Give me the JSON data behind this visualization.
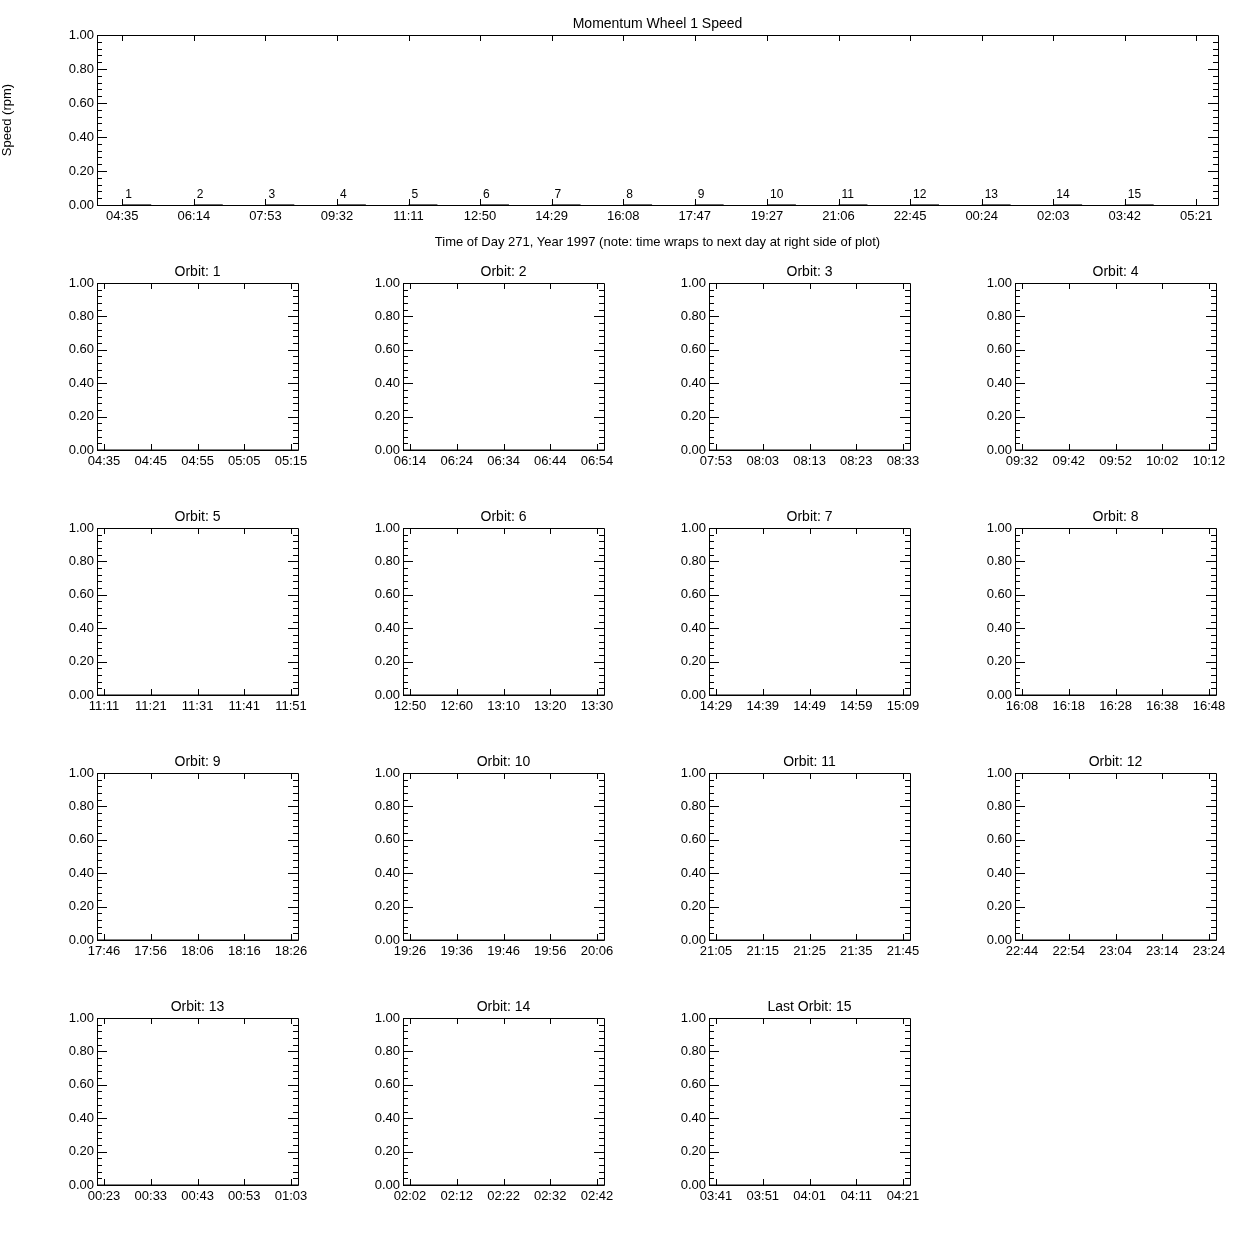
{
  "chart_data": [
    {
      "type": "line",
      "title": "Momentum Wheel 1 Speed",
      "xlabel": "Time of Day 271, Year 1997 (note: time wraps to next day at right side of plot)",
      "ylabel": "Speed (rpm)",
      "xlim": [
        "1997-09-28T04:00",
        "1997-09-29T05:51"
      ],
      "xticks": [
        {
          "value": "1997-09-28T04:35",
          "label": "04:35"
        },
        {
          "value": "1997-09-28T06:14",
          "label": "06:14"
        },
        {
          "value": "1997-09-28T07:53",
          "label": "07:53"
        },
        {
          "value": "1997-09-28T09:32",
          "label": "09:32"
        },
        {
          "value": "1997-09-28T11:11",
          "label": "11:11"
        },
        {
          "value": "1997-09-28T12:50",
          "label": "12:50"
        },
        {
          "value": "1997-09-28T14:29",
          "label": "14:29"
        },
        {
          "value": "1997-09-28T16:08",
          "label": "16:08"
        },
        {
          "value": "1997-09-28T17:47",
          "label": "17:47"
        },
        {
          "value": "1997-09-28T19:27",
          "label": "19:27"
        },
        {
          "value": "1997-09-28T21:06",
          "label": "21:06"
        },
        {
          "value": "1997-09-28T22:45",
          "label": "22:45"
        },
        {
          "value": "1997-09-29T00:24",
          "label": "00:24"
        },
        {
          "value": "1997-09-29T02:03",
          "label": "02:03"
        },
        {
          "value": "1997-09-29T03:42",
          "label": "03:42"
        },
        {
          "value": "1997-09-29T05:21",
          "label": "05:21"
        }
      ],
      "ylim": [
        0,
        1
      ],
      "yticks": [
        {
          "value": 0,
          "label": "0.00"
        },
        {
          "value": 0.2,
          "label": "0.20"
        },
        {
          "value": 0.4,
          "label": "0.40"
        },
        {
          "value": 0.6,
          "label": "0.60"
        },
        {
          "value": 0.8,
          "label": "0.80"
        },
        {
          "value": 1,
          "label": "1.00"
        }
      ],
      "series": [
        {
          "color": "#000000",
          "x": [
            "1997-09-28T04:35",
            "1997-09-28T05:15"
          ],
          "values": [
            0,
            0
          ]
        },
        {
          "color": "#000000",
          "x": [
            "1997-09-28T06:14",
            "1997-09-28T06:54"
          ],
          "values": [
            0,
            0
          ]
        },
        {
          "color": "#000000",
          "x": [
            "1997-09-28T07:53",
            "1997-09-28T08:33"
          ],
          "values": [
            0,
            0
          ]
        },
        {
          "color": "#000000",
          "x": [
            "1997-09-28T09:32",
            "1997-09-28T10:12"
          ],
          "values": [
            0,
            0
          ]
        },
        {
          "color": "#000000",
          "x": [
            "1997-09-28T11:11",
            "1997-09-28T11:51"
          ],
          "values": [
            0,
            0
          ]
        },
        {
          "color": "#000000",
          "x": [
            "1997-09-28T12:50",
            "1997-09-28T13:30"
          ],
          "values": [
            0,
            0
          ]
        },
        {
          "color": "#000000",
          "x": [
            "1997-09-28T14:29",
            "1997-09-28T15:09"
          ],
          "values": [
            0,
            0
          ]
        },
        {
          "color": "#000000",
          "x": [
            "1997-09-28T16:08",
            "1997-09-28T16:48"
          ],
          "values": [
            0,
            0
          ]
        },
        {
          "color": "#000000",
          "x": [
            "1997-09-28T17:47",
            "1997-09-28T18:27"
          ],
          "values": [
            0,
            0
          ]
        },
        {
          "color": "#000000",
          "x": [
            "1997-09-28T19:27",
            "1997-09-28T20:07"
          ],
          "values": [
            0,
            0
          ]
        },
        {
          "color": "#000000",
          "x": [
            "1997-09-28T21:06",
            "1997-09-28T21:46"
          ],
          "values": [
            0,
            0
          ]
        },
        {
          "color": "#000000",
          "x": [
            "1997-09-28T22:45",
            "1997-09-28T23:25"
          ],
          "values": [
            0,
            0
          ]
        },
        {
          "color": "#000000",
          "x": [
            "1997-09-29T00:24",
            "1997-09-29T01:04"
          ],
          "values": [
            0,
            0
          ]
        },
        {
          "color": "#000000",
          "x": [
            "1997-09-29T02:03",
            "1997-09-29T02:43"
          ],
          "values": [
            0,
            0
          ]
        },
        {
          "color": "#000000",
          "x": [
            "1997-09-29T03:42",
            "1997-09-29T04:22"
          ],
          "values": [
            0,
            0
          ]
        }
      ],
      "annotations": [
        {
          "text": "1",
          "x": "1997-09-28T04:35",
          "y": 0
        },
        {
          "text": "2",
          "x": "1997-09-28T06:14",
          "y": 0
        },
        {
          "text": "3",
          "x": "1997-09-28T07:53",
          "y": 0
        },
        {
          "text": "4",
          "x": "1997-09-28T09:32",
          "y": 0
        },
        {
          "text": "5",
          "x": "1997-09-28T11:11",
          "y": 0
        },
        {
          "text": "6",
          "x": "1997-09-28T12:50",
          "y": 0
        },
        {
          "text": "7",
          "x": "1997-09-28T14:29",
          "y": 0
        },
        {
          "text": "8",
          "x": "1997-09-28T16:08",
          "y": 0
        },
        {
          "text": "9",
          "x": "1997-09-28T17:47",
          "y": 0
        },
        {
          "text": "10",
          "x": "1997-09-28T19:27",
          "y": 0
        },
        {
          "text": "11",
          "x": "1997-09-28T21:06",
          "y": 0
        },
        {
          "text": "12",
          "x": "1997-09-28T22:45",
          "y": 0
        },
        {
          "text": "13",
          "x": "1997-09-29T00:24",
          "y": 0
        },
        {
          "text": "14",
          "x": "1997-09-29T02:03",
          "y": 0
        },
        {
          "text": "15",
          "x": "1997-09-29T03:42",
          "y": 0
        }
      ]
    },
    {
      "type": "line",
      "title": "Orbit: 1",
      "xlim": [
        4.558,
        5.275
      ],
      "xticks": [
        {
          "value": 4.583,
          "label": "04:35"
        },
        {
          "value": 4.75,
          "label": "04:45"
        },
        {
          "value": 4.917,
          "label": "04:55"
        },
        {
          "value": 5.083,
          "label": "05:05"
        },
        {
          "value": 5.25,
          "label": "05:15"
        }
      ],
      "ylim": [
        0,
        1
      ],
      "yticks": [
        {
          "value": 0,
          "label": "0.00"
        },
        {
          "value": 0.2,
          "label": "0.20"
        },
        {
          "value": 0.4,
          "label": "0.40"
        },
        {
          "value": 0.6,
          "label": "0.60"
        },
        {
          "value": 0.8,
          "label": "0.80"
        },
        {
          "value": 1,
          "label": "1.00"
        }
      ],
      "series": [
        {
          "color": "#000000",
          "x": [
            4.558,
            5.275
          ],
          "values": [
            0,
            0
          ]
        }
      ]
    },
    {
      "type": "line",
      "title": "Orbit: 2",
      "xlim": [
        6.208,
        6.925
      ],
      "xticks": [
        {
          "value": 6.233,
          "label": "06:14"
        },
        {
          "value": 6.4,
          "label": "06:24"
        },
        {
          "value": 6.567,
          "label": "06:34"
        },
        {
          "value": 6.733,
          "label": "06:44"
        },
        {
          "value": 6.9,
          "label": "06:54"
        }
      ],
      "ylim": [
        0,
        1
      ],
      "yticks": [
        {
          "value": 0,
          "label": "0.00"
        },
        {
          "value": 0.2,
          "label": "0.20"
        },
        {
          "value": 0.4,
          "label": "0.40"
        },
        {
          "value": 0.6,
          "label": "0.60"
        },
        {
          "value": 0.8,
          "label": "0.80"
        },
        {
          "value": 1,
          "label": "1.00"
        }
      ],
      "series": [
        {
          "color": "#000000",
          "x": [
            6.208,
            6.925
          ],
          "values": [
            0,
            0
          ]
        }
      ]
    },
    {
      "type": "line",
      "title": "Orbit: 3",
      "xlim": [
        7.858,
        8.575
      ],
      "xticks": [
        {
          "value": 7.883,
          "label": "07:53"
        },
        {
          "value": 8.05,
          "label": "08:03"
        },
        {
          "value": 8.217,
          "label": "08:13"
        },
        {
          "value": 8.383,
          "label": "08:23"
        },
        {
          "value": 8.55,
          "label": "08:33"
        }
      ],
      "ylim": [
        0,
        1
      ],
      "yticks": [
        {
          "value": 0,
          "label": "0.00"
        },
        {
          "value": 0.2,
          "label": "0.20"
        },
        {
          "value": 0.4,
          "label": "0.40"
        },
        {
          "value": 0.6,
          "label": "0.60"
        },
        {
          "value": 0.8,
          "label": "0.80"
        },
        {
          "value": 1,
          "label": "1.00"
        }
      ],
      "series": [
        {
          "color": "#000000",
          "x": [
            7.858,
            8.575
          ],
          "values": [
            0,
            0
          ]
        }
      ]
    },
    {
      "type": "line",
      "title": "Orbit: 4",
      "xlim": [
        9.508,
        10.225
      ],
      "xticks": [
        {
          "value": 9.533,
          "label": "09:32"
        },
        {
          "value": 9.7,
          "label": "09:42"
        },
        {
          "value": 9.867,
          "label": "09:52"
        },
        {
          "value": 10.033,
          "label": "10:02"
        },
        {
          "value": 10.2,
          "label": "10:12"
        }
      ],
      "ylim": [
        0,
        1
      ],
      "yticks": [
        {
          "value": 0,
          "label": "0.00"
        },
        {
          "value": 0.2,
          "label": "0.20"
        },
        {
          "value": 0.4,
          "label": "0.40"
        },
        {
          "value": 0.6,
          "label": "0.60"
        },
        {
          "value": 0.8,
          "label": "0.80"
        },
        {
          "value": 1,
          "label": "1.00"
        }
      ],
      "series": [
        {
          "color": "#000000",
          "x": [
            9.508,
            10.225
          ],
          "values": [
            0,
            0
          ]
        }
      ]
    },
    {
      "type": "line",
      "title": "Orbit: 5",
      "xlim": [
        11.158,
        11.875
      ],
      "xticks": [
        {
          "value": 11.183,
          "label": "11:11"
        },
        {
          "value": 11.35,
          "label": "11:21"
        },
        {
          "value": 11.517,
          "label": "11:31"
        },
        {
          "value": 11.683,
          "label": "11:41"
        },
        {
          "value": 11.85,
          "label": "11:51"
        }
      ],
      "ylim": [
        0,
        1
      ],
      "yticks": [
        {
          "value": 0,
          "label": "0.00"
        },
        {
          "value": 0.2,
          "label": "0.20"
        },
        {
          "value": 0.4,
          "label": "0.40"
        },
        {
          "value": 0.6,
          "label": "0.60"
        },
        {
          "value": 0.8,
          "label": "0.80"
        },
        {
          "value": 1,
          "label": "1.00"
        }
      ],
      "series": [
        {
          "color": "#000000",
          "x": [
            11.158,
            11.875
          ],
          "values": [
            0,
            0
          ]
        }
      ]
    },
    {
      "type": "line",
      "title": "Orbit: 6",
      "xlim": [
        12.808,
        13.525
      ],
      "xticks": [
        {
          "value": 12.833,
          "label": "12:50"
        },
        {
          "value": 13,
          "label": "12:60"
        },
        {
          "value": 13.167,
          "label": "13:10"
        },
        {
          "value": 13.333,
          "label": "13:20"
        },
        {
          "value": 13.5,
          "label": "13:30"
        }
      ],
      "ylim": [
        0,
        1
      ],
      "yticks": [
        {
          "value": 0,
          "label": "0.00"
        },
        {
          "value": 0.2,
          "label": "0.20"
        },
        {
          "value": 0.4,
          "label": "0.40"
        },
        {
          "value": 0.6,
          "label": "0.60"
        },
        {
          "value": 0.8,
          "label": "0.80"
        },
        {
          "value": 1,
          "label": "1.00"
        }
      ],
      "series": [
        {
          "color": "#000000",
          "x": [
            12.808,
            13.525
          ],
          "values": [
            0,
            0
          ]
        }
      ]
    },
    {
      "type": "line",
      "title": "Orbit: 7",
      "xlim": [
        14.458,
        15.175
      ],
      "xticks": [
        {
          "value": 14.483,
          "label": "14:29"
        },
        {
          "value": 14.65,
          "label": "14:39"
        },
        {
          "value": 14.817,
          "label": "14:49"
        },
        {
          "value": 14.983,
          "label": "14:59"
        },
        {
          "value": 15.15,
          "label": "15:09"
        }
      ],
      "ylim": [
        0,
        1
      ],
      "yticks": [
        {
          "value": 0,
          "label": "0.00"
        },
        {
          "value": 0.2,
          "label": "0.20"
        },
        {
          "value": 0.4,
          "label": "0.40"
        },
        {
          "value": 0.6,
          "label": "0.60"
        },
        {
          "value": 0.8,
          "label": "0.80"
        },
        {
          "value": 1,
          "label": "1.00"
        }
      ],
      "series": [
        {
          "color": "#000000",
          "x": [
            14.458,
            15.175
          ],
          "values": [
            0,
            0
          ]
        }
      ]
    },
    {
      "type": "line",
      "title": "Orbit: 8",
      "xlim": [
        16.108,
        16.825
      ],
      "xticks": [
        {
          "value": 16.133,
          "label": "16:08"
        },
        {
          "value": 16.3,
          "label": "16:18"
        },
        {
          "value": 16.467,
          "label": "16:28"
        },
        {
          "value": 16.633,
          "label": "16:38"
        },
        {
          "value": 16.8,
          "label": "16:48"
        }
      ],
      "ylim": [
        0,
        1
      ],
      "yticks": [
        {
          "value": 0,
          "label": "0.00"
        },
        {
          "value": 0.2,
          "label": "0.20"
        },
        {
          "value": 0.4,
          "label": "0.40"
        },
        {
          "value": 0.6,
          "label": "0.60"
        },
        {
          "value": 0.8,
          "label": "0.80"
        },
        {
          "value": 1,
          "label": "1.00"
        }
      ],
      "series": [
        {
          "color": "#000000",
          "x": [
            16.108,
            16.825
          ],
          "values": [
            0,
            0
          ]
        }
      ]
    },
    {
      "type": "line",
      "title": "Orbit: 9",
      "xlim": [
        17.742,
        18.458
      ],
      "xticks": [
        {
          "value": 17.767,
          "label": "17:46"
        },
        {
          "value": 17.933,
          "label": "17:56"
        },
        {
          "value": 18.1,
          "label": "18:06"
        },
        {
          "value": 18.267,
          "label": "18:16"
        },
        {
          "value": 18.433,
          "label": "18:26"
        }
      ],
      "ylim": [
        0,
        1
      ],
      "yticks": [
        {
          "value": 0,
          "label": "0.00"
        },
        {
          "value": 0.2,
          "label": "0.20"
        },
        {
          "value": 0.4,
          "label": "0.40"
        },
        {
          "value": 0.6,
          "label": "0.60"
        },
        {
          "value": 0.8,
          "label": "0.80"
        },
        {
          "value": 1,
          "label": "1.00"
        }
      ],
      "series": [
        {
          "color": "#000000",
          "x": [
            17.742,
            18.458
          ],
          "values": [
            0,
            0
          ]
        }
      ]
    },
    {
      "type": "line",
      "title": "Orbit: 10",
      "xlim": [
        19.408,
        20.125
      ],
      "xticks": [
        {
          "value": 19.433,
          "label": "19:26"
        },
        {
          "value": 19.6,
          "label": "19:36"
        },
        {
          "value": 19.767,
          "label": "19:46"
        },
        {
          "value": 19.933,
          "label": "19:56"
        },
        {
          "value": 20.1,
          "label": "20:06"
        }
      ],
      "ylim": [
        0,
        1
      ],
      "yticks": [
        {
          "value": 0,
          "label": "0.00"
        },
        {
          "value": 0.2,
          "label": "0.20"
        },
        {
          "value": 0.4,
          "label": "0.40"
        },
        {
          "value": 0.6,
          "label": "0.60"
        },
        {
          "value": 0.8,
          "label": "0.80"
        },
        {
          "value": 1,
          "label": "1.00"
        }
      ],
      "series": [
        {
          "color": "#000000",
          "x": [
            19.408,
            20.125
          ],
          "values": [
            0,
            0
          ]
        }
      ]
    },
    {
      "type": "line",
      "title": "Orbit: 11",
      "xlim": [
        21.058,
        21.775
      ],
      "xticks": [
        {
          "value": 21.083,
          "label": "21:05"
        },
        {
          "value": 21.25,
          "label": "21:15"
        },
        {
          "value": 21.417,
          "label": "21:25"
        },
        {
          "value": 21.583,
          "label": "21:35"
        },
        {
          "value": 21.75,
          "label": "21:45"
        }
      ],
      "ylim": [
        0,
        1
      ],
      "yticks": [
        {
          "value": 0,
          "label": "0.00"
        },
        {
          "value": 0.2,
          "label": "0.20"
        },
        {
          "value": 0.4,
          "label": "0.40"
        },
        {
          "value": 0.6,
          "label": "0.60"
        },
        {
          "value": 0.8,
          "label": "0.80"
        },
        {
          "value": 1,
          "label": "1.00"
        }
      ],
      "series": [
        {
          "color": "#000000",
          "x": [
            21.058,
            21.775
          ],
          "values": [
            0,
            0
          ]
        }
      ]
    },
    {
      "type": "line",
      "title": "Orbit: 12",
      "xlim": [
        22.708,
        23.425
      ],
      "xticks": [
        {
          "value": 22.733,
          "label": "22:44"
        },
        {
          "value": 22.9,
          "label": "22:54"
        },
        {
          "value": 23.067,
          "label": "23:04"
        },
        {
          "value": 23.233,
          "label": "23:14"
        },
        {
          "value": 23.4,
          "label": "23:24"
        }
      ],
      "ylim": [
        0,
        1
      ],
      "yticks": [
        {
          "value": 0,
          "label": "0.00"
        },
        {
          "value": 0.2,
          "label": "0.20"
        },
        {
          "value": 0.4,
          "label": "0.40"
        },
        {
          "value": 0.6,
          "label": "0.60"
        },
        {
          "value": 0.8,
          "label": "0.80"
        },
        {
          "value": 1,
          "label": "1.00"
        }
      ],
      "series": [
        {
          "color": "#000000",
          "x": [
            22.708,
            23.425
          ],
          "values": [
            0,
            0
          ]
        }
      ]
    },
    {
      "type": "line",
      "title": "Orbit: 13",
      "xlim": [
        0.358,
        1.075
      ],
      "xticks": [
        {
          "value": 0.383,
          "label": "00:23"
        },
        {
          "value": 0.55,
          "label": "00:33"
        },
        {
          "value": 0.717,
          "label": "00:43"
        },
        {
          "value": 0.883,
          "label": "00:53"
        },
        {
          "value": 1.05,
          "label": "01:03"
        }
      ],
      "ylim": [
        0,
        1
      ],
      "yticks": [
        {
          "value": 0,
          "label": "0.00"
        },
        {
          "value": 0.2,
          "label": "0.20"
        },
        {
          "value": 0.4,
          "label": "0.40"
        },
        {
          "value": 0.6,
          "label": "0.60"
        },
        {
          "value": 0.8,
          "label": "0.80"
        },
        {
          "value": 1,
          "label": "1.00"
        }
      ],
      "series": [
        {
          "color": "#000000",
          "x": [
            0.358,
            1.075
          ],
          "values": [
            0,
            0
          ]
        }
      ]
    },
    {
      "type": "line",
      "title": "Orbit: 14",
      "xlim": [
        2.008,
        2.725
      ],
      "xticks": [
        {
          "value": 2.033,
          "label": "02:02"
        },
        {
          "value": 2.2,
          "label": "02:12"
        },
        {
          "value": 2.367,
          "label": "02:22"
        },
        {
          "value": 2.533,
          "label": "02:32"
        },
        {
          "value": 2.7,
          "label": "02:42"
        }
      ],
      "ylim": [
        0,
        1
      ],
      "yticks": [
        {
          "value": 0,
          "label": "0.00"
        },
        {
          "value": 0.2,
          "label": "0.20"
        },
        {
          "value": 0.4,
          "label": "0.40"
        },
        {
          "value": 0.6,
          "label": "0.60"
        },
        {
          "value": 0.8,
          "label": "0.80"
        },
        {
          "value": 1,
          "label": "1.00"
        }
      ],
      "series": [
        {
          "color": "#000000",
          "x": [
            2.008,
            2.725
          ],
          "values": [
            0,
            0
          ]
        }
      ]
    },
    {
      "type": "line",
      "title": "Last Orbit: 15",
      "xlim": [
        3.658,
        4.375
      ],
      "xticks": [
        {
          "value": 3.683,
          "label": "03:41"
        },
        {
          "value": 3.85,
          "label": "03:51"
        },
        {
          "value": 4.017,
          "label": "04:01"
        },
        {
          "value": 4.183,
          "label": "04:11"
        },
        {
          "value": 4.35,
          "label": "04:21"
        }
      ],
      "ylim": [
        0,
        1
      ],
      "yticks": [
        {
          "value": 0,
          "label": "0.00"
        },
        {
          "value": 0.2,
          "label": "0.20"
        },
        {
          "value": 0.4,
          "label": "0.40"
        },
        {
          "value": 0.6,
          "label": "0.60"
        },
        {
          "value": 0.8,
          "label": "0.80"
        },
        {
          "value": 1,
          "label": "1.00"
        }
      ],
      "series": [
        {
          "color": "#000000",
          "x": [
            3.658,
            4.375
          ],
          "values": [
            0,
            0
          ]
        }
      ]
    }
  ]
}
